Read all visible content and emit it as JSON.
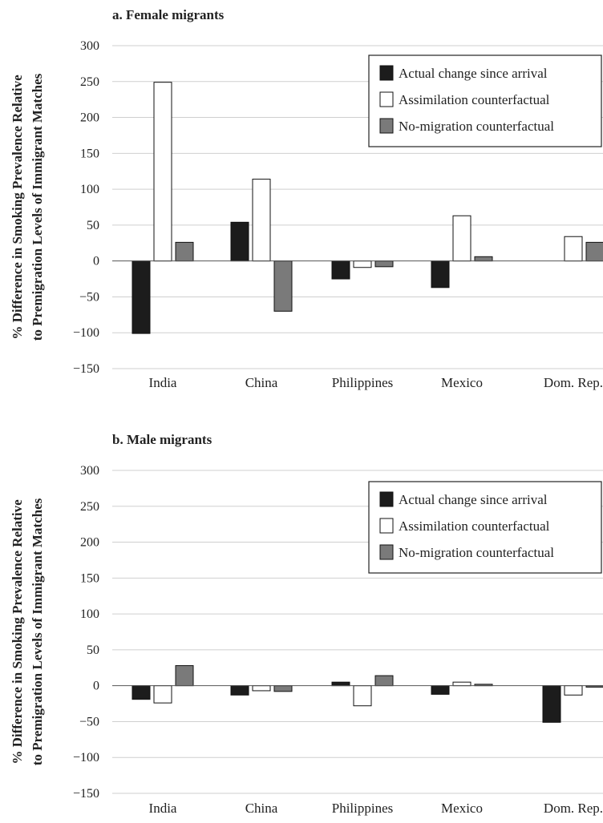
{
  "chart_data": [
    {
      "type": "bar",
      "title": "a. Female migrants",
      "ylabel": [
        "% Difference in Smoking Prevalence Relative",
        "to Premigration Levels of Immigrant Matches"
      ],
      "ylim": [
        -150,
        300
      ],
      "yticks": [
        "300",
        "250",
        "200",
        "150",
        "100",
        "50",
        "0",
        "−50",
        "−100",
        "−150"
      ],
      "categories": [
        "India",
        "China",
        "Philippines",
        "Mexico",
        "Dom. Rep."
      ],
      "grid": true,
      "legend_position": "top-right",
      "series": [
        {
          "name": "Actual change since arrival",
          "color": "#1c1c1c",
          "values": [
            -101,
            54,
            -25,
            -37,
            0
          ]
        },
        {
          "name": "Assimilation counterfactual",
          "color": "#ffffff",
          "values": [
            249,
            114,
            -9,
            63,
            34
          ]
        },
        {
          "name": "No-migration counterfactual",
          "color": "#7a7a7a",
          "values": [
            26,
            -70,
            -8,
            6,
            26
          ]
        }
      ]
    },
    {
      "type": "bar",
      "title": "b. Male migrants",
      "ylabel": [
        "% Difference in Smoking Prevalence Relative",
        "to Premigration Levels of Immigrant Matches"
      ],
      "ylim": [
        -150,
        300
      ],
      "yticks": [
        "300",
        "250",
        "200",
        "150",
        "100",
        "50",
        "0",
        "−50",
        "−100",
        "−150"
      ],
      "categories": [
        "India",
        "China",
        "Philippines",
        "Mexico",
        "Dom. Rep."
      ],
      "grid": true,
      "legend_position": "top-right",
      "series": [
        {
          "name": "Actual change since arrival",
          "color": "#1c1c1c",
          "values": [
            -19,
            -13,
            5,
            -12,
            -51
          ]
        },
        {
          "name": "Assimilation counterfactual",
          "color": "#ffffff",
          "values": [
            -24,
            -7,
            -28,
            5,
            -13
          ]
        },
        {
          "name": "No-migration counterfactual",
          "color": "#7a7a7a",
          "values": [
            28,
            -8,
            14,
            2,
            -2
          ]
        }
      ]
    }
  ]
}
